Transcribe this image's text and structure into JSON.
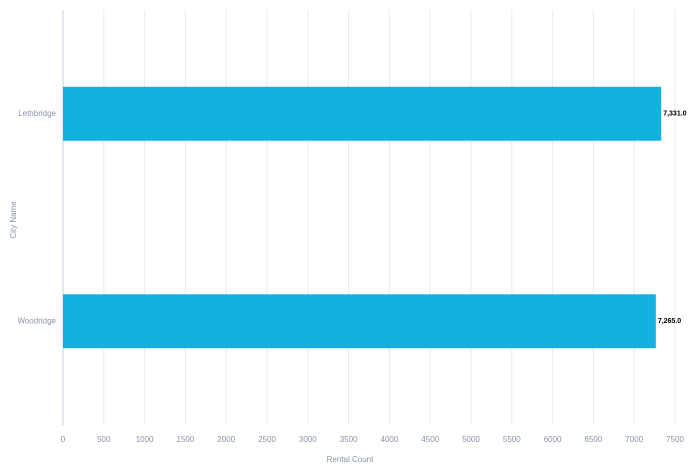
{
  "chart_data": {
    "type": "bar",
    "orientation": "horizontal",
    "x_label": "Rental Count",
    "y_label": "City Name",
    "categories": [
      "Lethbridge",
      "Woodridge"
    ],
    "values": [
      7331,
      7265
    ],
    "value_labels": [
      "7,331.0",
      "7,265.0"
    ],
    "color": "#14b0e0",
    "xlim": [
      0,
      7500
    ],
    "xticks": [
      0,
      500,
      1000,
      1500,
      2000,
      2500,
      3000,
      3500,
      4000,
      4500,
      5000,
      5500,
      6000,
      6500,
      7000,
      7500
    ],
    "grid": true
  }
}
